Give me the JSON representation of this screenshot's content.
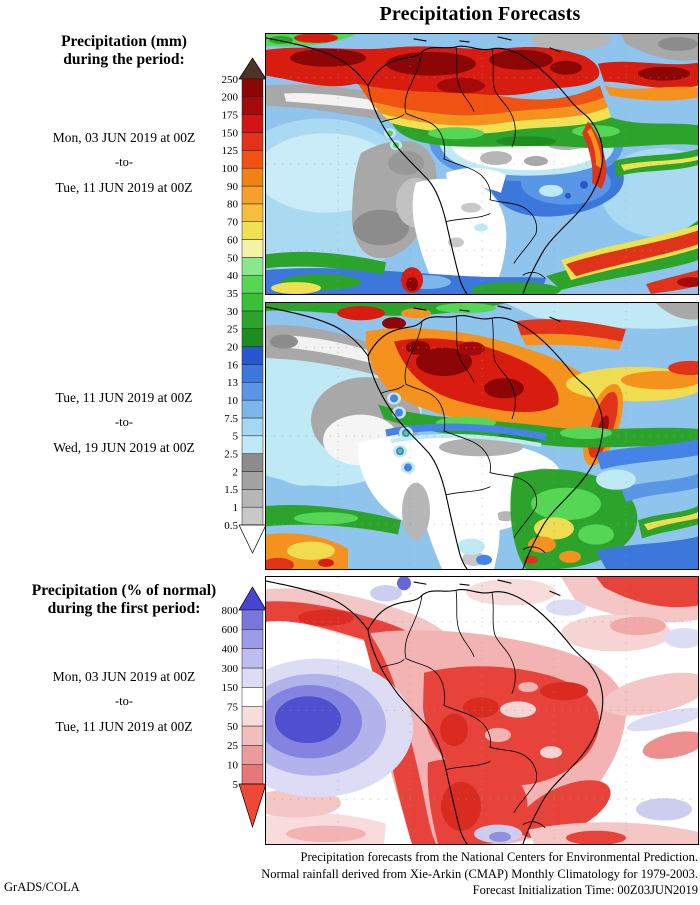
{
  "title": "Precipitation Forecasts",
  "left_column": {
    "mm_heading": {
      "line1": "Precipitation (mm)",
      "line2": "during the period:"
    },
    "period1": {
      "start": "Mon, 03 JUN 2019 at 00Z",
      "separator": "-to-",
      "end": "Tue, 11 JUN 2019 at 00Z"
    },
    "period2": {
      "start": "Tue, 11 JUN 2019 at 00Z",
      "separator": "-to-",
      "end": "Wed, 19 JUN 2019 at 00Z"
    },
    "pct_heading": {
      "line1": "Precipitation (% of normal)",
      "line2": "during the first period:"
    },
    "period3": {
      "start": "Mon, 03 JUN 2019 at 00Z",
      "separator": "-to-",
      "end": "Tue, 11 JUN 2019 at 00Z"
    },
    "credit": "GrADS/COLA"
  },
  "footer": {
    "line1": "Precipitation forecasts from the National Centers for Environmental Prediction.",
    "line2": "Normal rainfall derived from Xie-Arkin (CMAP) Monthly Climatology for 1979-2003.",
    "line3": "Forecast Initialization Time: 00Z03JUN2019"
  },
  "chart_data": {
    "type": "heatmap",
    "region": "South America and adjacent oceans",
    "panels": [
      {
        "id": "precip-mm-week1",
        "variable": "Precipitation accumulation (mm)",
        "period_start": "Mon, 03 JUN 2019 at 00Z",
        "period_end": "Tue, 11 JUN 2019 at 00Z",
        "colorbar": "mm",
        "summary": "Heavy rain (100 to >250 mm, red/dark red) along the ITCZ over Colombia, Venezuela and the northern Amazon, extending east across the tropical Atlantic; dry (<2.5 mm, white/grey) over eastern Brazil, the Peruvian coast and the southern cone; green/red frontal rain bands over the South Atlantic and far southern Andes."
      },
      {
        "id": "precip-mm-week2",
        "variable": "Precipitation accumulation (mm)",
        "period_start": "Tue, 11 JUN 2019 at 00Z",
        "period_end": "Wed, 19 JUN 2019 at 00Z",
        "colorbar": "mm",
        "summary": "Heaviest rain (red/dark red) concentrated over the northwest Amazon with an orange/yellow band stretching east over the Atlantic; large dry white zone from central Brazil to the Andes; moderate rain (green with orange/yellow cores) over southern Brazil, Uruguay and northeast Argentina."
      },
      {
        "id": "precip-pct-of-normal-week1",
        "variable": "Precipitation as % of normal",
        "period_start": "Mon, 03 JUN 2019 at 00Z",
        "period_end": "Tue, 11 JUN 2019 at 00Z",
        "colorbar": "pct",
        "summary": "Below-normal rainfall (red/pink, <75%) over most of central South America, the west coast, Paraguay, northern Argentina and southeast Brazil; strongly above-normal (blue/purple, >300%) blob over the southeast Pacific west of Chile."
      }
    ],
    "colorbar_mm": {
      "units": "mm",
      "levels": [
        0.5,
        1,
        1.5,
        2,
        2.5,
        5,
        7.5,
        10,
        13,
        16,
        20,
        25,
        30,
        35,
        40,
        50,
        60,
        70,
        80,
        90,
        100,
        125,
        150,
        175,
        200,
        250
      ],
      "colors_low_to_high": [
        "#ffffff",
        "#c8c8c8",
        "#b6b6b6",
        "#a3a3a3",
        "#8c8c8c",
        "#bfeaf5",
        "#a4d7f0",
        "#7db6ec",
        "#5a96e6",
        "#3c78dc",
        "#2856cd",
        "#1e8c1e",
        "#2ca42c",
        "#38c038",
        "#55d655",
        "#8ce68c",
        "#f4f2a6",
        "#f0e150",
        "#f5be3c",
        "#f5a028",
        "#f08214",
        "#ef5211",
        "#e0331a",
        "#d21414",
        "#a50a0a",
        "#8c0606",
        "#503228"
      ]
    },
    "colorbar_pct": {
      "units": "% of normal",
      "levels": [
        5,
        10,
        25,
        50,
        75,
        150,
        300,
        400,
        600,
        800
      ],
      "colors_low_to_high": [
        "#ee4837",
        "#e67878",
        "#eb9b9b",
        "#f0bebe",
        "#f8dcdc",
        "#ffffff",
        "#dcdcf5",
        "#bebeee",
        "#9b9be6",
        "#7878dc",
        "#4646d2"
      ]
    }
  }
}
